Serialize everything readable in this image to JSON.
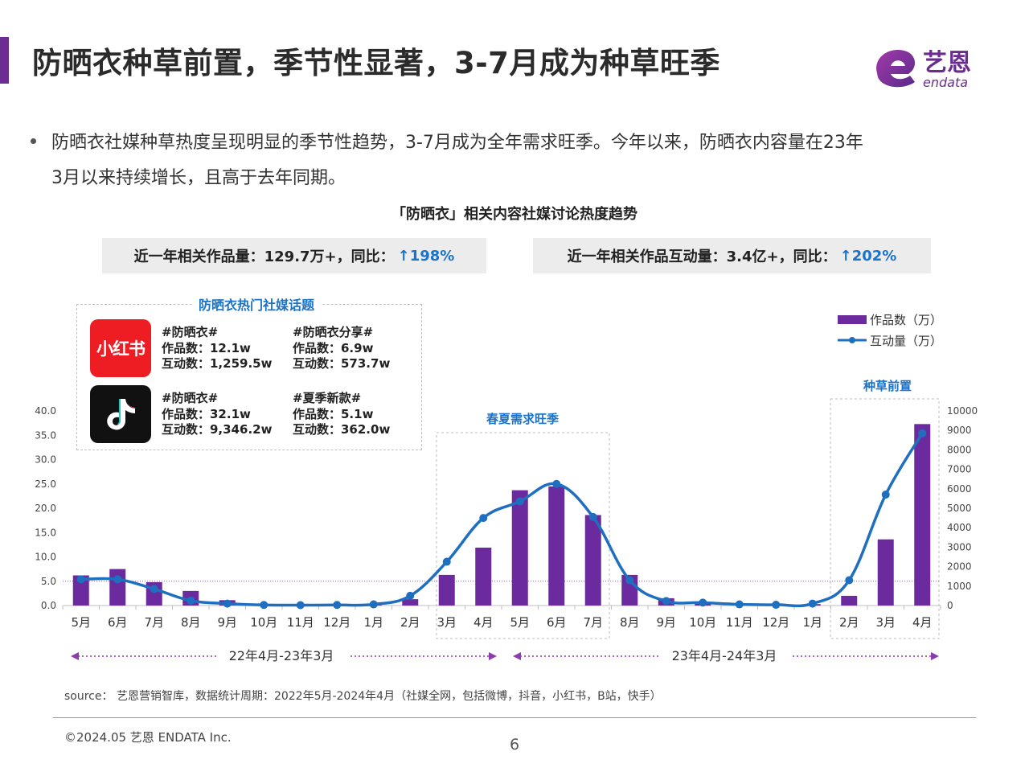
{
  "header": {
    "title": "防晒衣种草前置，季节性显著，3-7月成为种草旺季",
    "logo_text": "艺恩",
    "logo_sub": "endata"
  },
  "bullet": {
    "line1": "防晒衣社媒种草热度呈现明显的季节性趋势，3-7月成为全年需求旺季。今年以来，防晒衣内容量在23年",
    "line2": "3月以来持续增长，且高于去年同期。"
  },
  "stats": {
    "works_label": "近一年相关作品量：129.7万+，同比：",
    "works_yoy": "↑198%",
    "interact_label": "近一年相关作品互动量：3.4亿+，同比：",
    "interact_yoy": "↑202%"
  },
  "topics": {
    "title": "防晒衣热门社媒话题",
    "xhs_icon": "小红书",
    "xhs": [
      {
        "tag": "#防晒衣#",
        "works": "作品数：12.1w",
        "interact": "互动数：1,259.5w"
      },
      {
        "tag": "#防晒衣分享#",
        "works": "作品数：6.9w",
        "interact": "互动数：573.7w"
      }
    ],
    "douyin": [
      {
        "tag": "#防晒衣#",
        "works": "作品数：32.1w",
        "interact": "互动数：9,346.2w"
      },
      {
        "tag": "#夏季新款#",
        "works": "作品数：5.1w",
        "interact": "互动数：362.0w"
      }
    ]
  },
  "chart_data": {
    "type": "bar",
    "title": "「防晒衣」相关内容社媒讨论热度趋势",
    "categories": [
      "5月",
      "6月",
      "7月",
      "8月",
      "9月",
      "10月",
      "11月",
      "12月",
      "1月",
      "2月",
      "3月",
      "4月",
      "5月",
      "6月",
      "7月",
      "8月",
      "9月",
      "10月",
      "11月",
      "12月",
      "1月",
      "2月",
      "3月",
      "4月"
    ],
    "series": [
      {
        "name": "作品数（万）",
        "type": "bar",
        "axis": "left",
        "color": "#6b2a9e",
        "values": [
          6.2,
          7.5,
          4.8,
          3.0,
          1.1,
          0.3,
          0.2,
          0.3,
          0.3,
          1.3,
          6.3,
          11.9,
          23.7,
          24.5,
          18.6,
          6.3,
          1.5,
          0.4,
          0.2,
          0.2,
          0.3,
          2.0,
          13.6,
          37.3
        ]
      },
      {
        "name": "互动量（万）",
        "type": "line",
        "axis": "right",
        "color": "#1f6fc0",
        "values": [
          1350,
          1350,
          850,
          250,
          100,
          30,
          20,
          30,
          60,
          500,
          2250,
          4500,
          5350,
          6250,
          4550,
          1300,
          230,
          150,
          60,
          40,
          100,
          1300,
          5700,
          8850
        ]
      }
    ],
    "y_left": {
      "min": 0,
      "max": 40,
      "ticks": [
        "0.0",
        "5.0",
        "10.0",
        "15.0",
        "20.0",
        "25.0",
        "30.0",
        "35.0",
        "40.0"
      ]
    },
    "y_right": {
      "min": 0,
      "max": 10000,
      "ticks": [
        "0",
        "1000",
        "2000",
        "3000",
        "4000",
        "5000",
        "6000",
        "7000",
        "8000",
        "9000",
        "10000"
      ]
    },
    "annotations": [
      "春夏需求旺季",
      "种草前置"
    ],
    "periods": [
      "22年4月-23年3月",
      "23年4月-24年3月"
    ],
    "legend": "top-right",
    "reference_line_left_value": 5.0
  },
  "footer": {
    "source": "source： 艺恩营销智库，数据统计周期：2022年5月-2024年4月（社媒全网，包括微博，抖音，小红书，B站，快手）",
    "copyright": "©2024.05  艺恩 ENDATA Inc.",
    "page": "6"
  },
  "colors": {
    "accent": "#6d2c91",
    "bar": "#6b2a9e",
    "line": "#1f6fc0",
    "highlight": "#1a73c8"
  }
}
